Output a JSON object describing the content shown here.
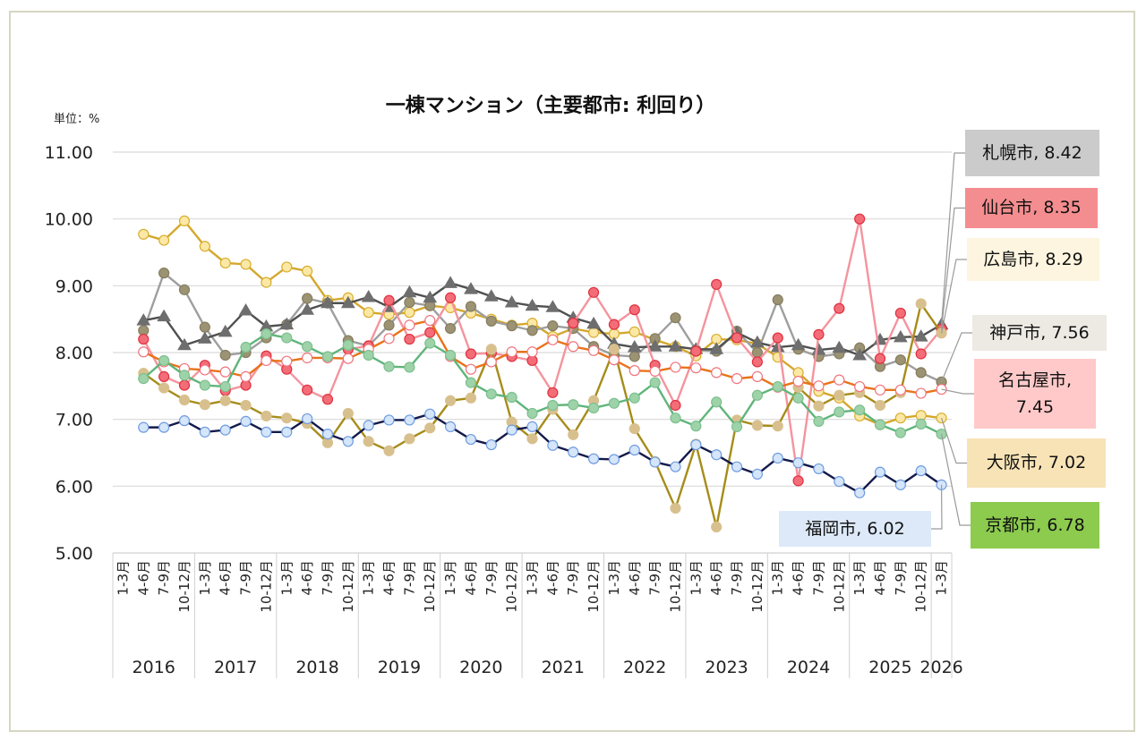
{
  "chart_data": {
    "type": "line",
    "title": "一棟マンション（主要都市: 利回り）",
    "unit_label": "単位：%",
    "xlabel": "",
    "ylabel": "",
    "ylim": [
      5.0,
      11.0
    ],
    "yticks": [
      "11.00",
      "10.00",
      "9.00",
      "8.00",
      "7.00",
      "6.00",
      "5.00"
    ],
    "ytick_values": [
      11,
      10,
      9,
      8,
      7,
      6,
      5
    ],
    "grid": true,
    "legend": "end-labels-right",
    "quarter_labels": [
      "1-3月",
      "4-6月",
      "7-9月",
      "10-12月"
    ],
    "years": [
      "2016",
      "2017",
      "2018",
      "2019",
      "2020",
      "2021",
      "2022",
      "2023",
      "2024",
      "2025",
      "2026"
    ],
    "categories": [
      "2016 1-3月",
      "2016 4-6月",
      "2016 7-9月",
      "2016 10-12月",
      "2017 1-3月",
      "2017 4-6月",
      "2017 7-9月",
      "2017 10-12月",
      "2018 1-3月",
      "2018 4-6月",
      "2018 7-9月",
      "2018 10-12月",
      "2019 1-3月",
      "2019 4-6月",
      "2019 7-9月",
      "2019 10-12月",
      "2020 1-3月",
      "2020 4-6月",
      "2020 7-9月",
      "2020 10-12月",
      "2021 1-3月",
      "2021 4-6月",
      "2021 7-9月",
      "2021 10-12月",
      "2022 1-3月",
      "2022 4-6月",
      "2022 7-9月",
      "2022 10-12月",
      "2023 1-3月",
      "2023 4-6月",
      "2023 7-9月",
      "2023 10-12月",
      "2024 1-3月",
      "2024 4-6月",
      "2024 7-9月",
      "2024 10-12月",
      "2025 1-3月",
      "2025 4-6月",
      "2025 7-9月",
      "2025 10-12月",
      "2026 1-3月"
    ],
    "series": [
      {
        "name": "大阪市",
        "end_label": "大阪市, 7.02",
        "line": "#D4A72C",
        "fill": "#FBE8A6",
        "stroke": "#D9AE2E",
        "marker": "circle",
        "label_bg": "#F7E3B6",
        "values": [
          null,
          9.77,
          9.68,
          9.97,
          9.59,
          9.34,
          9.32,
          9.05,
          9.28,
          9.22,
          8.78,
          8.82,
          8.6,
          8.57,
          8.6,
          8.7,
          8.67,
          8.59,
          8.5,
          8.41,
          8.44,
          8.24,
          8.36,
          8.3,
          8.28,
          8.31,
          8.19,
          8.09,
          7.95,
          8.2,
          8.19,
          8.13,
          7.93,
          7.7,
          7.42,
          7.32,
          7.05,
          6.92,
          7.02,
          7.06,
          7.02
        ]
      },
      {
        "name": "神戸市",
        "end_label": "神戸市, 7.56",
        "line": "#9E9E9E",
        "fill": "#9B9373",
        "stroke": "#857D5E",
        "marker": "circle",
        "label_bg": "#EDEAE3",
        "values": [
          null,
          8.33,
          9.19,
          8.94,
          8.38,
          7.96,
          8.0,
          8.22,
          8.42,
          8.81,
          8.74,
          8.18,
          8.1,
          8.41,
          8.75,
          8.7,
          8.36,
          8.69,
          8.47,
          8.4,
          8.33,
          8.4,
          8.36,
          8.09,
          7.96,
          7.94,
          8.21,
          8.52,
          8.04,
          8.02,
          8.32,
          8.0,
          8.79,
          8.05,
          7.94,
          7.98,
          8.07,
          7.79,
          7.89,
          7.7,
          7.56
        ]
      },
      {
        "name": "札幌市",
        "end_label": "札幌市, 8.42",
        "line": "#505050",
        "fill": "#6E6E6E",
        "stroke": "#6E6E6E",
        "marker": "triangle",
        "label_bg": "#CBCBCB",
        "values": [
          null,
          8.48,
          8.54,
          8.11,
          8.21,
          8.31,
          8.63,
          8.39,
          8.42,
          8.64,
          8.74,
          8.74,
          8.83,
          8.68,
          8.9,
          8.82,
          9.04,
          8.95,
          8.84,
          8.75,
          8.7,
          8.68,
          8.52,
          8.43,
          8.13,
          8.08,
          8.09,
          8.09,
          8.05,
          8.05,
          8.3,
          8.15,
          8.08,
          8.11,
          8.04,
          8.07,
          7.96,
          8.19,
          8.23,
          8.24,
          8.42
        ]
      },
      {
        "name": "仙台市",
        "end_label": "仙台市, 8.35",
        "line": "#F4949E",
        "fill": "#F26D78",
        "stroke": "#E0303E",
        "marker": "circle",
        "label_bg": "#F48D8F",
        "values": [
          null,
          8.2,
          7.64,
          7.51,
          7.81,
          7.43,
          7.51,
          7.95,
          7.75,
          7.44,
          7.3,
          8.05,
          8.1,
          8.78,
          8.2,
          8.3,
          8.82,
          7.98,
          7.99,
          7.94,
          7.88,
          7.4,
          8.44,
          8.9,
          8.42,
          8.64,
          7.81,
          7.21,
          8.02,
          9.02,
          8.22,
          7.86,
          8.22,
          6.08,
          8.27,
          8.66,
          10.0,
          7.91,
          8.59,
          7.98,
          8.35
        ]
      },
      {
        "name": "広島市",
        "end_label": "広島市, 8.29",
        "line": "#A68C1A",
        "fill": "#D8C08E",
        "stroke": "#D8C08E",
        "marker": "circle",
        "label_bg": "#FDF5DF",
        "values": [
          null,
          7.69,
          7.47,
          7.29,
          7.22,
          7.28,
          7.21,
          7.05,
          7.02,
          6.94,
          6.65,
          7.09,
          6.67,
          6.53,
          6.71,
          6.87,
          7.28,
          7.32,
          8.05,
          6.96,
          6.71,
          7.15,
          6.77,
          7.28,
          8.05,
          6.86,
          6.37,
          5.67,
          6.63,
          5.39,
          6.99,
          6.91,
          6.9,
          7.48,
          7.2,
          7.36,
          7.4,
          7.21,
          7.4,
          8.73,
          8.29
        ]
      },
      {
        "name": "名古屋市",
        "end_label": "名古屋市, 7.45",
        "line": "#E8731A",
        "fill": "#FFFFFF",
        "stroke": "#F0737E",
        "marker": "circle",
        "label_bg": "#FFC9C9",
        "values": [
          null,
          8.01,
          7.86,
          7.76,
          7.74,
          7.71,
          7.64,
          7.88,
          7.87,
          7.92,
          7.92,
          7.91,
          8.05,
          8.21,
          8.41,
          8.48,
          7.94,
          7.75,
          7.86,
          8.01,
          8.01,
          8.19,
          8.09,
          8.03,
          7.89,
          7.73,
          7.72,
          7.78,
          7.77,
          7.7,
          7.61,
          7.64,
          7.48,
          7.57,
          7.5,
          7.59,
          7.49,
          7.44,
          7.44,
          7.39,
          7.45
        ]
      },
      {
        "name": "京都市",
        "end_label": "京都市, 6.78",
        "line": "#5FB57A",
        "fill": "#9ED3A9",
        "stroke": "#7DBF8E",
        "marker": "circle",
        "label_bg": "#8CCB4E",
        "values": [
          null,
          7.61,
          7.88,
          7.66,
          7.51,
          7.49,
          8.08,
          8.28,
          8.22,
          8.09,
          7.94,
          8.11,
          7.96,
          7.79,
          7.78,
          8.14,
          7.96,
          7.55,
          7.38,
          7.33,
          7.09,
          7.21,
          7.22,
          7.17,
          7.24,
          7.32,
          7.55,
          7.02,
          6.9,
          7.26,
          6.89,
          7.36,
          7.49,
          7.32,
          6.97,
          7.11,
          7.14,
          6.92,
          6.8,
          6.93,
          6.78
        ]
      },
      {
        "name": "福岡市",
        "end_label": "福岡市, 6.02",
        "line": "#141A4A",
        "fill": "#D5E6FA",
        "stroke": "#6E9BE0",
        "marker": "circle",
        "label_bg": "#DDE9F8",
        "values": [
          null,
          6.88,
          6.88,
          6.98,
          6.81,
          6.84,
          6.97,
          6.81,
          6.81,
          7.01,
          6.78,
          6.67,
          6.91,
          6.99,
          6.99,
          7.08,
          6.89,
          6.7,
          6.62,
          6.84,
          6.89,
          6.61,
          6.51,
          6.41,
          6.4,
          6.54,
          6.36,
          6.29,
          6.62,
          6.47,
          6.29,
          6.18,
          6.42,
          6.35,
          6.26,
          6.07,
          5.9,
          6.21,
          6.02,
          6.23,
          6.02
        ]
      }
    ]
  }
}
